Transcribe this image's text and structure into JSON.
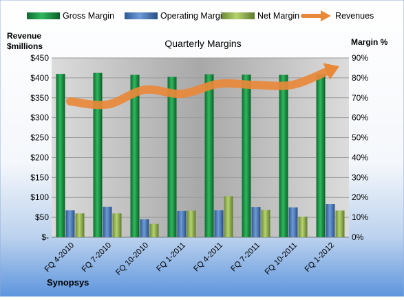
{
  "chart_data": {
    "type": "bar",
    "title": "Quarterly Margins",
    "footer": "Synopsys",
    "left_axis_label_lines": [
      "Revenue",
      "$millions"
    ],
    "right_axis_label": "Margin %",
    "categories": [
      "FQ 4-2010",
      "FQ 7-2010",
      "FQ 10-2010",
      "FQ 1-2011",
      "FQ 4-2011",
      "FQ 7-2011",
      "FQ 10-2011",
      "FQ 1-2012"
    ],
    "left_ticks": [
      "$-",
      "$50",
      "$100",
      "$150",
      "$200",
      "$250",
      "$300",
      "$350",
      "$400",
      "$450"
    ],
    "right_ticks": [
      "0%",
      "10%",
      "20%",
      "30%",
      "40%",
      "50%",
      "60%",
      "70%",
      "80%",
      "90%"
    ],
    "ylim_left": [
      0,
      450
    ],
    "ylim_right": [
      0,
      90
    ],
    "grid": true,
    "legend_position": "top",
    "series": [
      {
        "name": "Gross Margin",
        "kind": "bar",
        "axis": "right",
        "color": "#1a9a4a",
        "values": [
          82,
          82.5,
          81.5,
          80.5,
          81.8,
          81.6,
          81.5,
          81.8
        ]
      },
      {
        "name": "Operating Margin",
        "kind": "bar",
        "axis": "right",
        "color": "#4f7fc0",
        "values": [
          13.5,
          15.3,
          9,
          13.2,
          13.5,
          15.2,
          15,
          16.6
        ]
      },
      {
        "name": "Net Margin",
        "kind": "bar",
        "axis": "right",
        "color": "#9bbb59",
        "values": [
          12,
          12,
          6.7,
          13.3,
          20.6,
          13.7,
          10.3,
          13.4
        ]
      },
      {
        "name": "Revenues",
        "kind": "line",
        "axis": "left",
        "color": "#e8893a",
        "values": [
          341,
          333,
          370,
          360,
          385,
          382,
          383,
          420
        ]
      }
    ]
  }
}
